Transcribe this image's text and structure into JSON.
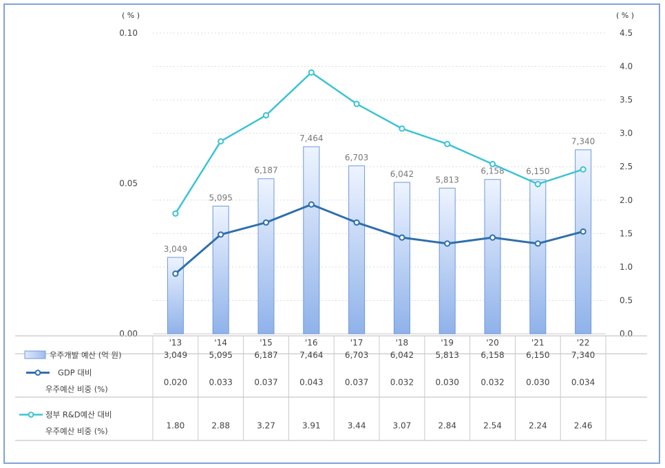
{
  "chart_data": {
    "type": "bar",
    "categories": [
      "'13",
      "'14",
      "'15",
      "'16",
      "'17",
      "'18",
      "'19",
      "'20",
      "'21",
      "'22"
    ],
    "left_unit": "( % )",
    "right_unit": "( % )",
    "left_axis": {
      "ticks": [
        "0.00",
        "0.05",
        "0.10"
      ],
      "min": 0,
      "max": 0.1
    },
    "right_axis": {
      "ticks": [
        "0.0",
        "0.5",
        "1.0",
        "1.5",
        "2.0",
        "2.5",
        "3.0",
        "3.5",
        "4.0",
        "4.5"
      ],
      "min": 0,
      "max": 4.5
    },
    "bar_axis_max": 12000,
    "series": [
      {
        "name": "우주개발 예산 (억 원)",
        "type": "bar",
        "axis": "bar",
        "color": "#a9c4ee",
        "values": [
          3049,
          5095,
          6187,
          7464,
          6703,
          6042,
          5813,
          6158,
          6150,
          7340
        ],
        "labels": [
          "3,049",
          "5,095",
          "6,187",
          "7,464",
          "6,703",
          "6,042",
          "5,813",
          "6,158",
          "6,150",
          "7,340"
        ]
      },
      {
        "name_line1": "GDP 대비",
        "name_line2": "우주예산 비중 (%)",
        "type": "line",
        "axis": "left",
        "color": "#2e6fad",
        "values": [
          0.02,
          0.033,
          0.037,
          0.043,
          0.037,
          0.032,
          0.03,
          0.032,
          0.03,
          0.034
        ],
        "labels": [
          "0.020",
          "0.033",
          "0.037",
          "0.043",
          "0.037",
          "0.032",
          "0.030",
          "0.032",
          "0.030",
          "0.034"
        ]
      },
      {
        "name_line1": "정부 R&D예산 대비",
        "name_line2": "우주예산 비중 (%)",
        "type": "line",
        "axis": "right",
        "color": "#3cc3d3",
        "values": [
          1.8,
          2.88,
          3.27,
          3.91,
          3.44,
          3.07,
          2.84,
          2.54,
          2.24,
          2.46
        ],
        "labels": [
          "1.80",
          "2.88",
          "3.27",
          "3.91",
          "3.44",
          "3.07",
          "2.84",
          "2.54",
          "2.24",
          "2.46"
        ]
      }
    ],
    "grid": "dotted horizontal"
  }
}
